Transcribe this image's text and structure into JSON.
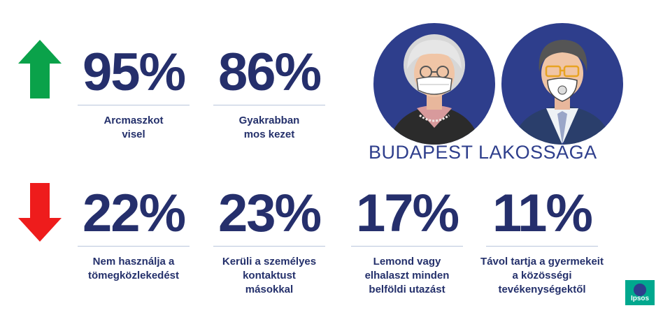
{
  "increase": {
    "stats": [
      {
        "value": "95%",
        "line1": "Arcmaszkot",
        "line2": "visel"
      },
      {
        "value": "86%",
        "line1": "Gyakrabban",
        "line2": "mos kezet"
      }
    ]
  },
  "decrease": {
    "stats": [
      {
        "value": "22%",
        "line1": "Nem használja a",
        "line2": "tömegközlekedést",
        "line3": ""
      },
      {
        "value": "23%",
        "line1": "Kerüli a személyes",
        "line2": "kontaktust",
        "line3": "másokkal"
      },
      {
        "value": "17%",
        "line1": "Lemond vagy",
        "line2": "elhalaszt minden",
        "line3": "belföldi utazást"
      },
      {
        "value": "11%",
        "line1": "Távol tartja a gyermekeit",
        "line2": "a közösségi",
        "line3": "tevékenységektől"
      }
    ]
  },
  "headline": "BUDAPEST LAKOSSÁGA",
  "logo": "Ipsos",
  "icons": {
    "up": "up-arrow-icon",
    "down": "down-arrow-icon"
  },
  "colors": {
    "up_arrow": "#0aa24a",
    "down_arrow": "#ee1c1c",
    "navy": "#252f6c",
    "circle": "#2e3e8c",
    "logo": "#00a88e"
  }
}
